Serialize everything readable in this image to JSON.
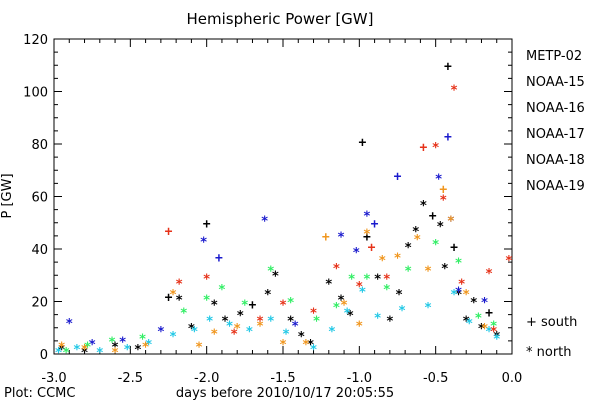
{
  "chart_data": {
    "type": "scatter",
    "title": "Hemispheric Power [GW]",
    "xlabel": "days before 2010/10/17 20:05:55",
    "ylabel": "P [GW]",
    "xlim": [
      -3.0,
      0.0
    ],
    "ylim": [
      0,
      120
    ],
    "x_ticks": [
      "-3.0",
      "-2.5",
      "-2.0",
      "-1.5",
      "-1.0",
      "-0.5",
      "0.0"
    ],
    "y_ticks": [
      "0",
      "20",
      "40",
      "60",
      "80",
      "100",
      "120"
    ],
    "footer": "Plot: CCMC",
    "hemisphere_key": [
      {
        "symbol": "+",
        "label": "south"
      },
      {
        "symbol": "*",
        "label": "north"
      }
    ],
    "colors": {
      "METP-02": "#000000",
      "NOAA-15": "#1a1acd",
      "NOAA-16": "#22c8e6",
      "NOAA-17": "#33ee66",
      "NOAA-18": "#f0961e",
      "NOAA-19": "#e63219"
    },
    "series": [
      {
        "name": "METP-02",
        "points": [
          [
            -2.95,
            3,
            "n"
          ],
          [
            -2.8,
            2,
            "n"
          ],
          [
            -2.6,
            4,
            "n"
          ],
          [
            -2.45,
            3,
            "n"
          ],
          [
            -2.25,
            22,
            "s"
          ],
          [
            -2.18,
            22,
            "n"
          ],
          [
            -2.1,
            11,
            "n"
          ],
          [
            -2.0,
            50,
            "s"
          ],
          [
            -1.95,
            20,
            "n"
          ],
          [
            -1.88,
            14,
            "n"
          ],
          [
            -1.78,
            16,
            "n"
          ],
          [
            -1.7,
            19,
            "s"
          ],
          [
            -1.6,
            24,
            "n"
          ],
          [
            -1.55,
            31,
            "n"
          ],
          [
            -1.45,
            14,
            "n"
          ],
          [
            -1.38,
            8,
            "n"
          ],
          [
            -1.32,
            5,
            "n"
          ],
          [
            -1.2,
            28,
            "n"
          ],
          [
            -1.12,
            22,
            "n"
          ],
          [
            -1.06,
            16,
            "n"
          ],
          [
            -0.98,
            81,
            "s"
          ],
          [
            -0.95,
            45,
            "s"
          ],
          [
            -0.88,
            30,
            "n"
          ],
          [
            -0.8,
            14,
            "n"
          ],
          [
            -0.74,
            24,
            "n"
          ],
          [
            -0.68,
            42,
            "n"
          ],
          [
            -0.63,
            48,
            "n"
          ],
          [
            -0.58,
            58,
            "n"
          ],
          [
            -0.52,
            53,
            "s"
          ],
          [
            -0.47,
            50,
            "n"
          ],
          [
            -0.44,
            34,
            "n"
          ],
          [
            -0.42,
            110,
            "s"
          ],
          [
            -0.38,
            41,
            "s"
          ],
          [
            -0.35,
            24,
            "n"
          ],
          [
            -0.3,
            14,
            "n"
          ],
          [
            -0.25,
            21,
            "n"
          ],
          [
            -0.2,
            11,
            "n"
          ],
          [
            -0.15,
            16,
            "s"
          ],
          [
            -0.1,
            8,
            "n"
          ]
        ]
      },
      {
        "name": "NOAA-15",
        "points": [
          [
            -2.9,
            13,
            "n"
          ],
          [
            -2.75,
            5,
            "n"
          ],
          [
            -2.55,
            6,
            "n"
          ],
          [
            -2.3,
            10,
            "n"
          ],
          [
            -2.02,
            44,
            "n"
          ],
          [
            -1.92,
            37,
            "s"
          ],
          [
            -1.62,
            52,
            "n"
          ],
          [
            -1.42,
            12,
            "n"
          ],
          [
            -1.12,
            46,
            "n"
          ],
          [
            -1.02,
            40,
            "n"
          ],
          [
            -0.95,
            54,
            "n"
          ],
          [
            -0.9,
            50,
            "s"
          ],
          [
            -0.75,
            68,
            "s"
          ],
          [
            -0.48,
            68,
            "n"
          ],
          [
            -0.42,
            83,
            "s"
          ],
          [
            -0.4,
            52,
            "n"
          ],
          [
            -0.35,
            25,
            "n"
          ],
          [
            -0.18,
            21,
            "n"
          ]
        ]
      },
      {
        "name": "NOAA-16",
        "points": [
          [
            -2.97,
            2,
            "n"
          ],
          [
            -2.85,
            3,
            "n"
          ],
          [
            -2.7,
            2,
            "n"
          ],
          [
            -2.52,
            3,
            "n"
          ],
          [
            -2.38,
            5,
            "n"
          ],
          [
            -2.22,
            8,
            "n"
          ],
          [
            -2.08,
            10,
            "n"
          ],
          [
            -1.98,
            14,
            "n"
          ],
          [
            -1.85,
            12,
            "n"
          ],
          [
            -1.72,
            10,
            "n"
          ],
          [
            -1.58,
            14,
            "n"
          ],
          [
            -1.48,
            9,
            "n"
          ],
          [
            -1.3,
            3,
            "n"
          ],
          [
            -1.18,
            10,
            "n"
          ],
          [
            -1.08,
            17,
            "n"
          ],
          [
            -0.98,
            25,
            "n"
          ],
          [
            -0.88,
            15,
            "n"
          ],
          [
            -0.72,
            18,
            "n"
          ],
          [
            -0.55,
            19,
            "n"
          ],
          [
            -0.38,
            24,
            "n"
          ],
          [
            -0.28,
            13,
            "n"
          ],
          [
            -0.15,
            10,
            "n"
          ],
          [
            -0.1,
            7,
            "n"
          ]
        ]
      },
      {
        "name": "NOAA-17",
        "points": [
          [
            -2.92,
            2,
            "n"
          ],
          [
            -2.78,
            4,
            "n"
          ],
          [
            -2.62,
            6,
            "n"
          ],
          [
            -2.42,
            7,
            "n"
          ],
          [
            -2.15,
            17,
            "n"
          ],
          [
            -2.0,
            22,
            "n"
          ],
          [
            -1.9,
            26,
            "n"
          ],
          [
            -1.75,
            20,
            "n"
          ],
          [
            -1.58,
            33,
            "n"
          ],
          [
            -1.45,
            21,
            "n"
          ],
          [
            -1.28,
            14,
            "n"
          ],
          [
            -1.15,
            19,
            "n"
          ],
          [
            -1.05,
            30,
            "n"
          ],
          [
            -0.95,
            30,
            "n"
          ],
          [
            -0.82,
            26,
            "n"
          ],
          [
            -0.68,
            33,
            "n"
          ],
          [
            -0.5,
            43,
            "n"
          ],
          [
            -0.35,
            36,
            "n"
          ],
          [
            -0.22,
            15,
            "n"
          ],
          [
            -0.12,
            12,
            "n"
          ]
        ]
      },
      {
        "name": "NOAA-18",
        "points": [
          [
            -2.95,
            4,
            "n"
          ],
          [
            -2.8,
            3,
            "n"
          ],
          [
            -2.6,
            2,
            "n"
          ],
          [
            -2.4,
            4,
            "n"
          ],
          [
            -2.22,
            24,
            "n"
          ],
          [
            -2.05,
            4,
            "n"
          ],
          [
            -1.95,
            9,
            "n"
          ],
          [
            -1.8,
            11,
            "n"
          ],
          [
            -1.65,
            12,
            "n"
          ],
          [
            -1.5,
            5,
            "n"
          ],
          [
            -1.35,
            5,
            "n"
          ],
          [
            -1.22,
            45,
            "s"
          ],
          [
            -1.1,
            20,
            "n"
          ],
          [
            -1.0,
            12,
            "n"
          ],
          [
            -0.95,
            47,
            "n"
          ],
          [
            -0.85,
            37,
            "n"
          ],
          [
            -0.75,
            38,
            "n"
          ],
          [
            -0.62,
            45,
            "n"
          ],
          [
            -0.55,
            33,
            "n"
          ],
          [
            -0.45,
            63,
            "s"
          ],
          [
            -0.4,
            52,
            "n"
          ],
          [
            -0.3,
            24,
            "n"
          ],
          [
            -0.18,
            11,
            "n"
          ]
        ]
      },
      {
        "name": "NOAA-19",
        "points": [
          [
            -2.25,
            47,
            "s"
          ],
          [
            -2.18,
            28,
            "n"
          ],
          [
            -2.0,
            30,
            "n"
          ],
          [
            -1.82,
            9,
            "n"
          ],
          [
            -1.65,
            14,
            "n"
          ],
          [
            -1.5,
            20,
            "n"
          ],
          [
            -1.3,
            17,
            "n"
          ],
          [
            -1.15,
            34,
            "n"
          ],
          [
            -1.0,
            27,
            "n"
          ],
          [
            -0.92,
            41,
            "s"
          ],
          [
            -0.82,
            30,
            "n"
          ],
          [
            -0.58,
            79,
            "s"
          ],
          [
            -0.5,
            80,
            "n"
          ],
          [
            -0.45,
            60,
            "n"
          ],
          [
            -0.38,
            102,
            "n"
          ],
          [
            -0.33,
            28,
            "n"
          ],
          [
            -0.15,
            32,
            "n"
          ],
          [
            -0.12,
            10,
            "n"
          ],
          [
            -0.02,
            37,
            "n"
          ]
        ]
      }
    ]
  }
}
